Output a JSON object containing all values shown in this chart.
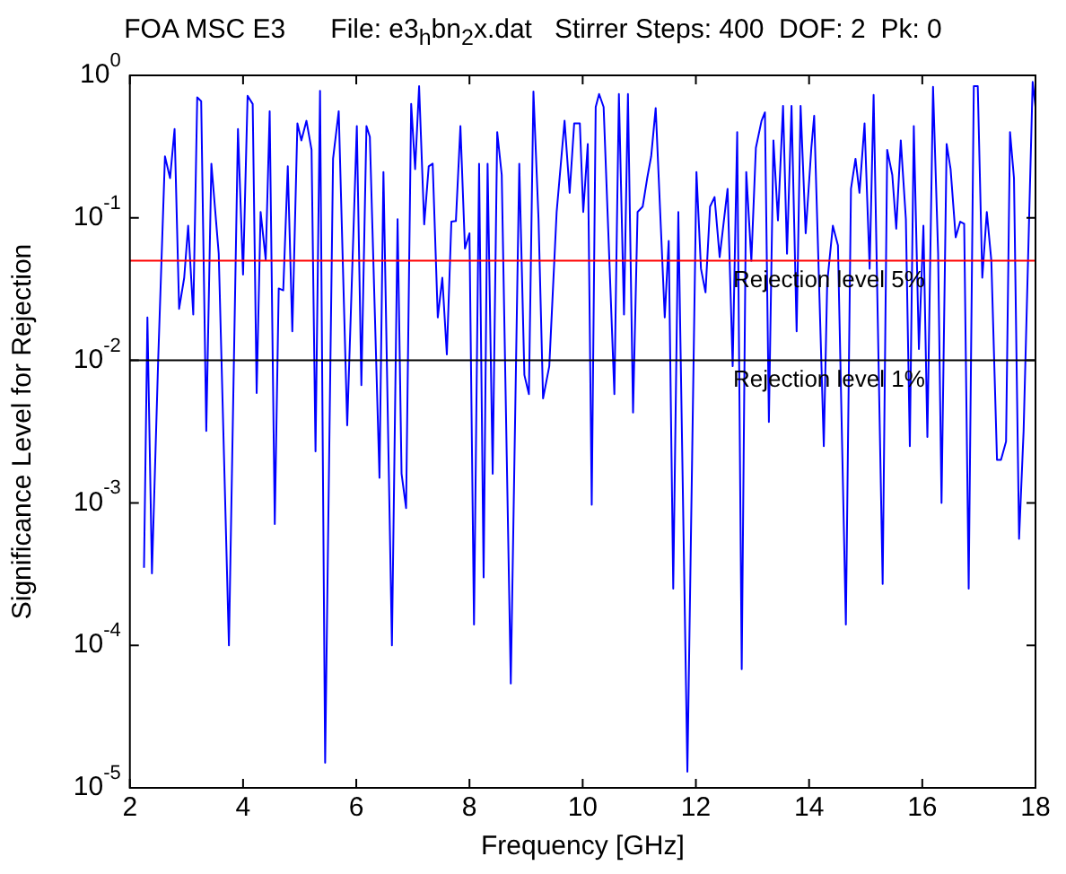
{
  "chart_data": {
    "type": "line",
    "title": "FOA MSC E3      File: e3$_{h}$bn$_{2}$x.dat   Stirrer Steps: 400  DOF: 2  Pk: 0",
    "xlabel": "Frequency [GHz]",
    "ylabel": "Significance Level for Rejection",
    "x": [
      2.25,
      2.31,
      2.39,
      2.5,
      2.62,
      2.71,
      2.79,
      2.87,
      2.96,
      3.03,
      3.12,
      3.19,
      3.26,
      3.35,
      3.44,
      3.57,
      3.75,
      3.91,
      4.0,
      4.08,
      4.17,
      4.24,
      4.31,
      4.4,
      4.47,
      4.56,
      4.63,
      4.71,
      4.79,
      4.87,
      4.96,
      5.03,
      5.12,
      5.21,
      5.28,
      5.36,
      5.45,
      5.59,
      5.69,
      5.84,
      6.01,
      6.09,
      6.18,
      6.24,
      6.41,
      6.48,
      6.63,
      6.73,
      6.8,
      6.88,
      6.97,
      7.04,
      7.11,
      7.2,
      7.28,
      7.35,
      7.44,
      7.52,
      7.6,
      7.68,
      7.76,
      7.84,
      7.92,
      8.0,
      8.08,
      8.17,
      8.25,
      8.32,
      8.41,
      8.49,
      8.57,
      8.73,
      8.88,
      8.97,
      9.05,
      9.13,
      9.22,
      9.3,
      9.41,
      9.54,
      9.68,
      9.77,
      9.85,
      9.95,
      10.01,
      10.09,
      10.16,
      10.23,
      10.29,
      10.37,
      10.56,
      10.64,
      10.73,
      10.8,
      10.89,
      10.97,
      11.06,
      11.14,
      11.21,
      11.29,
      11.45,
      11.52,
      11.6,
      11.69,
      11.85,
      12.01,
      12.09,
      12.17,
      12.25,
      12.33,
      12.42,
      12.56,
      12.65,
      12.73,
      12.81,
      12.89,
      12.98,
      13.06,
      13.16,
      13.22,
      13.29,
      13.37,
      13.45,
      13.54,
      13.61,
      13.69,
      13.78,
      13.85,
      13.94,
      14.04,
      14.09,
      14.26,
      14.32,
      14.42,
      14.51,
      14.65,
      14.74,
      14.82,
      14.89,
      14.98,
      15.07,
      15.14,
      15.3,
      15.38,
      15.47,
      15.54,
      15.62,
      15.71,
      15.78,
      15.85,
      15.94,
      16.02,
      16.09,
      16.19,
      16.28,
      16.34,
      16.43,
      16.5,
      16.59,
      16.67,
      16.74,
      16.82,
      16.91,
      16.98,
      17.06,
      17.14,
      17.22,
      17.32,
      17.39,
      17.48,
      17.55,
      17.62,
      17.71,
      17.79,
      17.95,
      18.0
    ],
    "series": [
      {
        "color": "#0000ff",
        "values": [
          0.00035,
          0.02,
          0.00032,
          0.01,
          0.27,
          0.19,
          0.42,
          0.023,
          0.038,
          0.088,
          0.021,
          0.7,
          0.66,
          0.0032,
          0.24,
          0.056,
          0.0001,
          0.42,
          0.04,
          0.72,
          0.63,
          0.0059,
          0.11,
          0.051,
          0.56,
          0.00071,
          0.032,
          0.031,
          0.23,
          0.016,
          0.46,
          0.35,
          0.48,
          0.3,
          0.0023,
          0.78,
          1.5e-05,
          0.26,
          0.56,
          0.0035,
          0.44,
          0.0067,
          0.44,
          0.37,
          0.0015,
          0.21,
          0.0001,
          0.098,
          0.0016,
          0.00092,
          0.63,
          0.22,
          0.84,
          0.09,
          0.23,
          0.24,
          0.02,
          0.038,
          0.011,
          0.094,
          0.095,
          0.44,
          0.061,
          0.078,
          0.00014,
          0.24,
          0.0003,
          0.24,
          0.0016,
          0.4,
          0.2,
          5.4e-05,
          0.24,
          0.0079,
          0.0058,
          0.77,
          0.098,
          0.0054,
          0.0091,
          0.11,
          0.48,
          0.15,
          0.46,
          0.46,
          0.11,
          0.33,
          0.00097,
          0.6,
          0.74,
          0.6,
          0.0058,
          0.74,
          0.021,
          0.74,
          0.0043,
          0.11,
          0.12,
          0.19,
          0.27,
          0.59,
          0.02,
          0.069,
          0.00025,
          0.11,
          1.3e-05,
          0.21,
          0.044,
          0.03,
          0.12,
          0.14,
          0.053,
          0.16,
          0.0091,
          0.4,
          6.8e-05,
          0.21,
          0.05,
          0.31,
          0.48,
          0.55,
          0.0037,
          0.35,
          0.096,
          0.61,
          0.056,
          0.61,
          0.016,
          0.61,
          0.078,
          0.31,
          0.52,
          0.0025,
          0.035,
          0.088,
          0.064,
          0.00014,
          0.16,
          0.26,
          0.15,
          0.46,
          0.044,
          0.73,
          0.00027,
          0.3,
          0.2,
          0.084,
          0.35,
          0.098,
          0.0025,
          0.44,
          0.012,
          0.088,
          0.0029,
          0.83,
          0.056,
          0.001,
          0.33,
          0.22,
          0.073,
          0.094,
          0.091,
          0.00025,
          0.84,
          0.84,
          0.038,
          0.11,
          0.05,
          0.002,
          0.002,
          0.0027,
          0.4,
          0.19,
          0.00056,
          0.0032,
          0.9,
          0.6
        ]
      }
    ],
    "log": "y",
    "xlim": [
      2,
      18
    ],
    "xticks": [
      2,
      4,
      6,
      8,
      10,
      12,
      14,
      16,
      18
    ],
    "ylim": [
      1e-05,
      1
    ],
    "yticks": [
      {
        "value": 1e-05,
        "label": "10$^{-5}$"
      },
      {
        "value": 0.0001,
        "label": "10$^{-4}$"
      },
      {
        "value": 0.001,
        "label": "10$^{-3}$"
      },
      {
        "value": 0.01,
        "label": "10$^{-2}$"
      },
      {
        "value": 0.1,
        "label": "10$^{-1}$"
      },
      {
        "value": 1,
        "label": "10$^{0}$"
      }
    ],
    "ref_lines": [
      {
        "axis": "y",
        "value": 0.05,
        "label": "Rejection level 5%",
        "color": "#ff0000"
      },
      {
        "axis": "y",
        "value": 0.01,
        "label": "Rejection level 1%",
        "color": "#000000"
      }
    ],
    "grid": false,
    "legend": false,
    "marker": "none",
    "line_style": "solid"
  }
}
